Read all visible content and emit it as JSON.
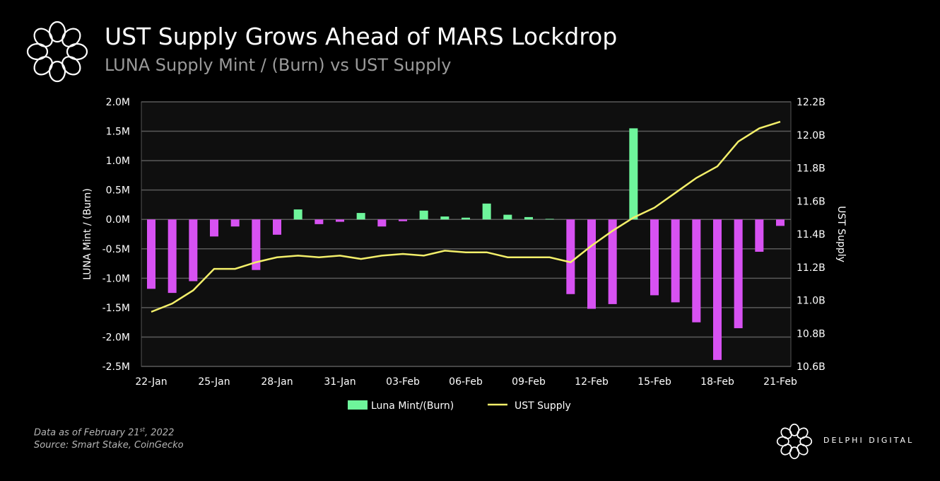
{
  "header": {
    "title": "UST Supply Grows Ahead of MARS Lockdrop",
    "subtitle": "LUNA Supply Mint / (Burn) vs UST Supply"
  },
  "footer": {
    "note_prefix": "Data as of February 21",
    "note_sup": "st",
    "note_suffix": ", 2022",
    "source": "Source: Smart Stake, CoinGecko",
    "brand": "DELPHI DIGITAL"
  },
  "colors": {
    "mint": "#6ef59b",
    "burn": "#d752f2",
    "line": "#f3ef6a",
    "plot_bg": "#0f0f0f",
    "grid": "#5a5a5a"
  },
  "chart_data": {
    "type": "bar+line",
    "title": "UST Supply Grows Ahead of MARS Lockdrop",
    "subtitle": "LUNA Supply Mint / (Burn) vs UST Supply",
    "ylabel": "LUNA Mint / (Burn)",
    "y2label": "UST Supply",
    "ylim": [
      -2500000,
      2000000
    ],
    "y2lim": [
      10.6,
      12.2
    ],
    "grid": true,
    "legend_position": "bottom",
    "yticks": [
      "2.0M",
      "1.5M",
      "1.0M",
      "0.5M",
      "0.0M",
      "-0.5M",
      "-1.0M",
      "-1.5M",
      "-2.0M",
      "-2.5M"
    ],
    "y2ticks": [
      "12.2B",
      "12.0B",
      "11.8B",
      "11.6B",
      "11.4B",
      "11.2B",
      "11.0B",
      "10.8B",
      "10.6B"
    ],
    "xticks": [
      "22-Jan",
      "25-Jan",
      "28-Jan",
      "31-Jan",
      "03-Feb",
      "06-Feb",
      "09-Feb",
      "12-Feb",
      "15-Feb",
      "18-Feb",
      "21-Feb"
    ],
    "x": [
      "22-Jan",
      "23-Jan",
      "24-Jan",
      "25-Jan",
      "26-Jan",
      "27-Jan",
      "28-Jan",
      "29-Jan",
      "30-Jan",
      "31-Jan",
      "01-Feb",
      "02-Feb",
      "03-Feb",
      "04-Feb",
      "05-Feb",
      "06-Feb",
      "07-Feb",
      "08-Feb",
      "09-Feb",
      "10-Feb",
      "11-Feb",
      "12-Feb",
      "13-Feb",
      "14-Feb",
      "15-Feb",
      "16-Feb",
      "17-Feb",
      "18-Feb",
      "19-Feb",
      "20-Feb",
      "21-Feb"
    ],
    "series": [
      {
        "name": "Luna Mint/(Burn)",
        "type": "bar",
        "axis": "left",
        "values": [
          -1180000,
          -1250000,
          -1050000,
          -290000,
          -120000,
          -860000,
          -260000,
          170000,
          -80000,
          -40000,
          110000,
          -120000,
          -30000,
          150000,
          50000,
          30000,
          270000,
          80000,
          40000,
          10000,
          -1270000,
          -1520000,
          -1440000,
          1550000,
          -1290000,
          -1410000,
          -1750000,
          -2390000,
          -1850000,
          -550000,
          -110000
        ]
      },
      {
        "name": "UST Supply",
        "type": "line",
        "axis": "right",
        "unit": "B",
        "values": [
          10.93,
          10.98,
          11.06,
          11.19,
          11.19,
          11.23,
          11.26,
          11.27,
          11.26,
          11.27,
          11.25,
          11.27,
          11.28,
          11.27,
          11.3,
          11.29,
          11.29,
          11.26,
          11.26,
          11.26,
          11.23,
          11.33,
          11.42,
          11.5,
          11.56,
          11.65,
          11.74,
          11.81,
          11.96,
          12.04,
          12.08
        ]
      }
    ]
  }
}
